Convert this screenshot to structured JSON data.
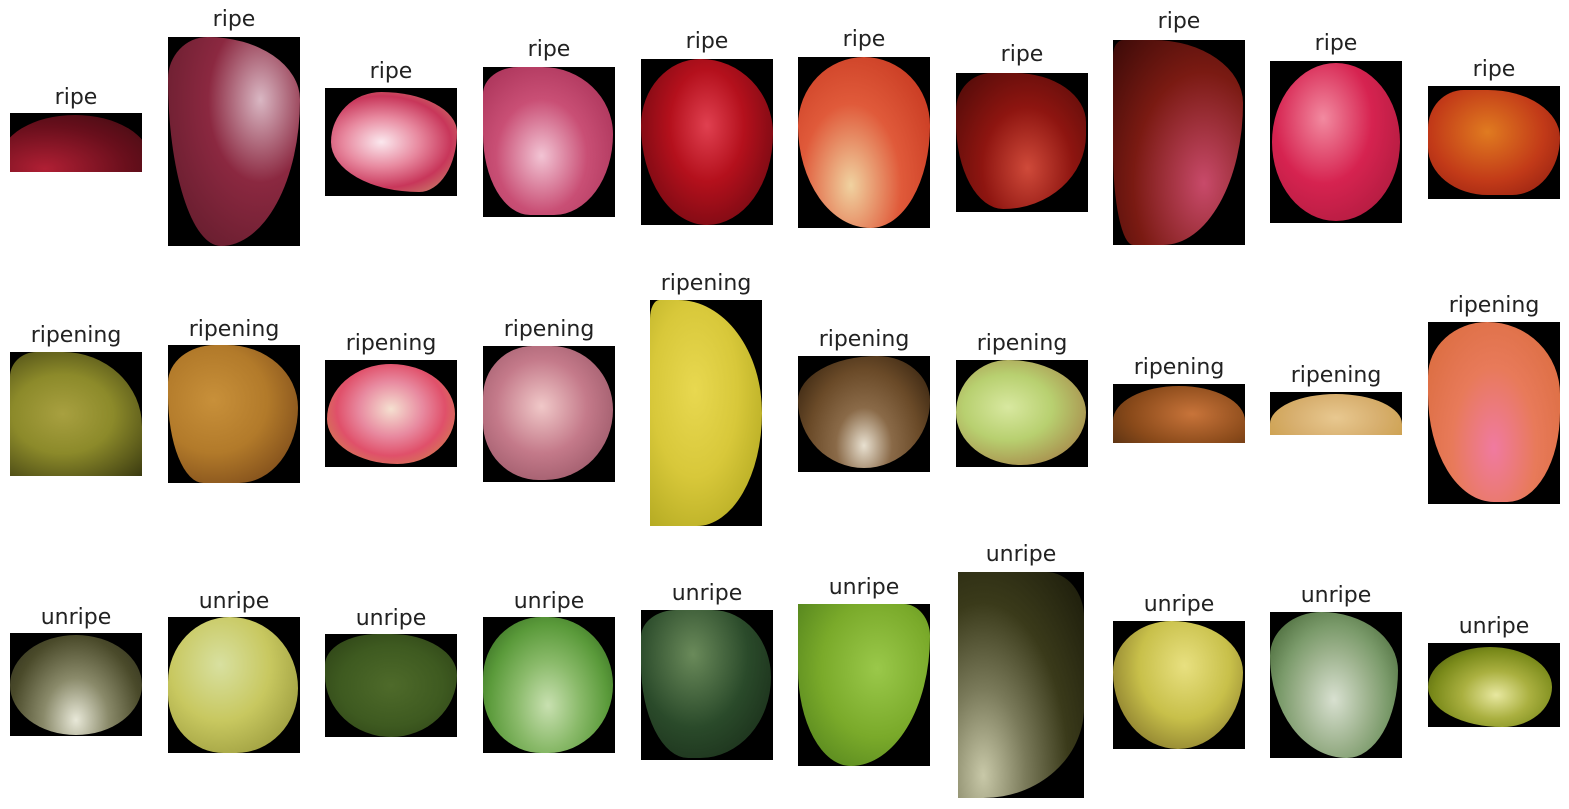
{
  "palette": {
    "ripe": "#9e1b2e",
    "ripening": "#c69a3a",
    "unripe": "#5e8a3c",
    "background": "#000000"
  },
  "rows": [
    {
      "class": "ripe",
      "items": [
        {
          "label": "ripe",
          "colors": [
            "#b01f34",
            "#3a0b10"
          ]
        },
        {
          "label": "ripe",
          "colors": [
            "#8b2840",
            "#d9b7c3"
          ]
        },
        {
          "label": "ripe",
          "colors": [
            "#e88aa0",
            "#c8a070"
          ]
        },
        {
          "label": "ripe",
          "colors": [
            "#c94f75",
            "#f2c4d4"
          ]
        },
        {
          "label": "ripe",
          "colors": [
            "#b4101c",
            "#5a070e"
          ]
        },
        {
          "label": "ripe",
          "colors": [
            "#e05a3a",
            "#f0d2a0"
          ]
        },
        {
          "label": "ripe",
          "colors": [
            "#8e1510",
            "#cf4a3a"
          ]
        },
        {
          "label": "ripe",
          "colors": [
            "#7a1a12",
            "#c84a6a"
          ]
        },
        {
          "label": "ripe",
          "colors": [
            "#d62350",
            "#f28aa0"
          ]
        },
        {
          "label": "ripe",
          "colors": [
            "#c23a18",
            "#e07b20"
          ]
        }
      ]
    },
    {
      "class": "ripening",
      "items": [
        {
          "label": "ripening",
          "colors": [
            "#8c8a2a",
            "#3a3a10"
          ]
        },
        {
          "label": "ripening",
          "colors": [
            "#b27a2a",
            "#6a3a14"
          ]
        },
        {
          "label": "ripening",
          "colors": [
            "#e0506a",
            "#f5e0d0"
          ]
        },
        {
          "label": "ripening",
          "colors": [
            "#c47a8a",
            "#f0c8c8"
          ]
        },
        {
          "label": "ripening",
          "colors": [
            "#d8c83a",
            "#a8a01a"
          ]
        },
        {
          "label": "ripening",
          "colors": [
            "#6a4a28",
            "#e8e0d0"
          ]
        },
        {
          "label": "ripening",
          "colors": [
            "#b8d070",
            "#a06a3a"
          ]
        },
        {
          "label": "ripening",
          "colors": [
            "#8a4a1a",
            "#c8743a"
          ]
        },
        {
          "label": "ripening",
          "colors": [
            "#d8b070",
            "#c89a40"
          ]
        },
        {
          "label": "ripening",
          "colors": [
            "#e87a5a",
            "#f07aa0"
          ]
        }
      ]
    },
    {
      "class": "unripe",
      "items": [
        {
          "label": "unripe",
          "colors": [
            "#4a4a2a",
            "#e8e8d8"
          ]
        },
        {
          "label": "unripe",
          "colors": [
            "#c8c860",
            "#d8e0a0"
          ]
        },
        {
          "label": "unripe",
          "colors": [
            "#3e5a20",
            "#4e6a2a"
          ]
        },
        {
          "label": "unripe",
          "colors": [
            "#5a9a3a",
            "#c8e0b0"
          ]
        },
        {
          "label": "unripe",
          "colors": [
            "#2a4a2a",
            "#6a8a5a"
          ]
        },
        {
          "label": "unripe",
          "colors": [
            "#7aaa2a",
            "#9ac84a"
          ]
        },
        {
          "label": "unripe",
          "colors": [
            "#3a3a1a",
            "#c8c8a8"
          ]
        },
        {
          "label": "unripe",
          "colors": [
            "#c8c04a",
            "#6a5a20"
          ]
        },
        {
          "label": "unripe",
          "colors": [
            "#7a9a6a",
            "#d8e0d0"
          ]
        },
        {
          "label": "unripe",
          "colors": [
            "#7a8a1a",
            "#e8e8a0"
          ]
        }
      ]
    }
  ]
}
